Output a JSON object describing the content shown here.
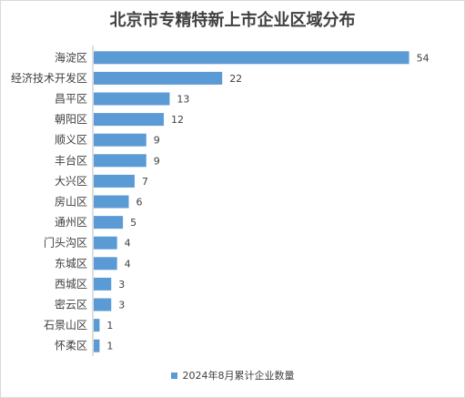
{
  "chart_data": {
    "type": "bar",
    "orientation": "horizontal",
    "title": "北京市专精特新上市企业区域分布",
    "categories": [
      "海淀区",
      "经济技术开发区",
      "昌平区",
      "朝阳区",
      "顺义区",
      "丰台区",
      "大兴区",
      "房山区",
      "通州区",
      "门头沟区",
      "东城区",
      "西城区",
      "密云区",
      "石景山区",
      "怀柔区"
    ],
    "series": [
      {
        "name": "2024年8月累计企业数量",
        "values": [
          54,
          22,
          13,
          12,
          9,
          9,
          7,
          6,
          5,
          4,
          4,
          3,
          3,
          1,
          1
        ]
      }
    ],
    "xlim": [
      0,
      55
    ],
    "grid": false,
    "legend_position": "bottom",
    "bar_color": "#5b9bd5"
  }
}
